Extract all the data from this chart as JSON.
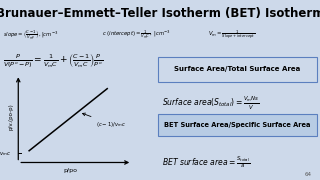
{
  "title": "Brunauer–Emmett–Teller Isotherm (BET) Isotherm",
  "title_bg": "#f4a0a0",
  "bg_color": "#cdd9ea",
  "slope_text": "$slope = \\left(\\frac{C-1}{V_m c}\\right), |cm^{-3}$",
  "intercept_text": "$c\\ (intercept) = \\frac{1}{V_m C},\\ |cm^{-3}$",
  "vm_text": "$V_m = \\frac{1}{Slope+intercept}$",
  "formula_main": "$\\frac{P}{V(P^o - P)} = \\frac{1}{V_m C} + \\left(\\frac{C-1}{V_m C}\\right)\\frac{P}{P^o}$",
  "xlabel": "p/po",
  "ylabel": "p/v.(po-p)",
  "yintercept_label": "$1/v_m c$",
  "slope_arrow_label": "$(c-1)/v_m c$",
  "box1_text": "Surface Area/Total Surface Area",
  "box1_bg": "#cdd9ea",
  "formula_surface": "$Surface\\ area(S_{total}) = \\frac{V_m Ns}{V}$",
  "box2_text": "BET Surface Area/Specific Surface Area",
  "box2_bg": "#b8cce4",
  "formula_bet": "$BET\\ surface\\ area = \\frac{S_{total}}{a}$",
  "page_num": "64"
}
